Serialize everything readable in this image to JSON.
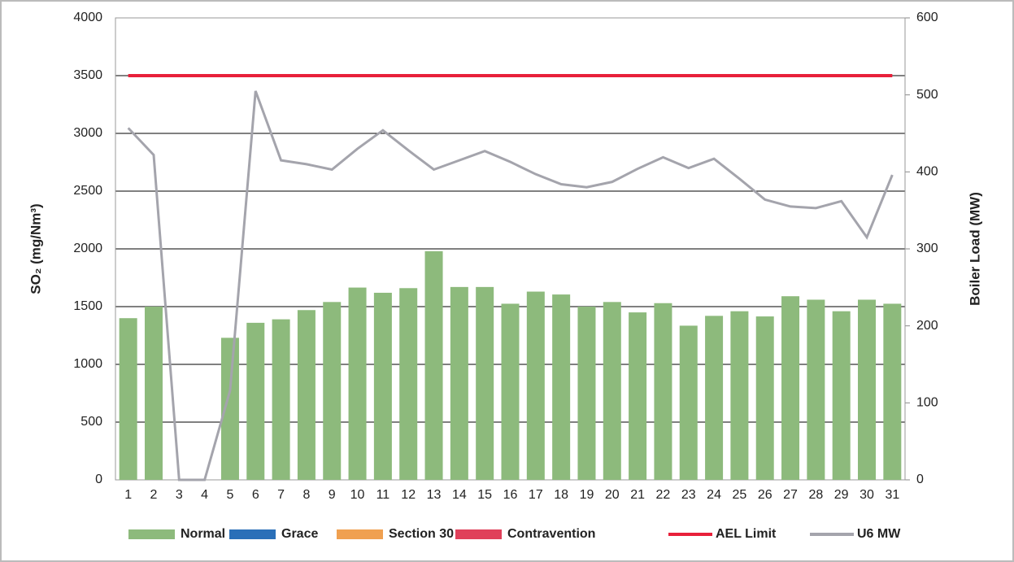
{
  "chart_data": {
    "type": "bar",
    "ylabel": "SO₂ (mg/Nm³)",
    "y2label": "Boiler Load (MW)",
    "categories": [
      "1",
      "2",
      "3",
      "4",
      "5",
      "6",
      "7",
      "8",
      "9",
      "10",
      "11",
      "12",
      "13",
      "14",
      "15",
      "16",
      "17",
      "18",
      "19",
      "20",
      "21",
      "22",
      "23",
      "24",
      "25",
      "26",
      "27",
      "28",
      "29",
      "30",
      "31"
    ],
    "ylim": [
      0,
      4000
    ],
    "yticks": [
      0,
      500,
      1000,
      1500,
      2000,
      2500,
      3000,
      3500,
      4000
    ],
    "y2lim": [
      0,
      600
    ],
    "y2ticks": [
      0,
      100,
      200,
      300,
      400,
      500,
      600
    ],
    "grid": true,
    "series": [
      {
        "name": "Normal",
        "color": "#8dba7c",
        "kind": "bar",
        "values": [
          1400,
          1500,
          0,
          0,
          1230,
          1360,
          1390,
          1470,
          1540,
          1665,
          1620,
          1660,
          1980,
          1670,
          1670,
          1525,
          1630,
          1605,
          1500,
          1540,
          1450,
          1530,
          1335,
          1420,
          1460,
          1415,
          1590,
          1560,
          1460,
          1560,
          1525
        ]
      },
      {
        "name": "Grace",
        "color": "#2a6fb8",
        "kind": "bar",
        "values": [
          0,
          0,
          0,
          0,
          0,
          0,
          0,
          0,
          0,
          0,
          0,
          0,
          0,
          0,
          0,
          0,
          0,
          0,
          0,
          0,
          0,
          0,
          0,
          0,
          0,
          0,
          0,
          0,
          0,
          0,
          0
        ]
      },
      {
        "name": "Section 30",
        "color": "#f0a050",
        "kind": "bar",
        "values": [
          0,
          0,
          0,
          0,
          0,
          0,
          0,
          0,
          0,
          0,
          0,
          0,
          0,
          0,
          0,
          0,
          0,
          0,
          0,
          0,
          0,
          0,
          0,
          0,
          0,
          0,
          0,
          0,
          0,
          0,
          0
        ]
      },
      {
        "name": "Contravention",
        "color": "#e0405a",
        "kind": "bar",
        "values": [
          0,
          0,
          0,
          0,
          0,
          0,
          0,
          0,
          0,
          0,
          0,
          0,
          0,
          0,
          0,
          0,
          0,
          0,
          0,
          0,
          0,
          0,
          0,
          0,
          0,
          0,
          0,
          0,
          0,
          0,
          0
        ]
      },
      {
        "name": "AEL Limit",
        "color": "#e8203a",
        "kind": "line",
        "values": [
          3500,
          3500,
          3500,
          3500,
          3500,
          3500,
          3500,
          3500,
          3500,
          3500,
          3500,
          3500,
          3500,
          3500,
          3500,
          3500,
          3500,
          3500,
          3500,
          3500,
          3500,
          3500,
          3500,
          3500,
          3500,
          3500,
          3500,
          3500,
          3500,
          3500,
          3500
        ]
      },
      {
        "name": "U6 MW",
        "color": "#a4a4ac",
        "kind": "line",
        "axis": "y2",
        "values": [
          457,
          422,
          0,
          0,
          116,
          505,
          415,
          410,
          403,
          430,
          454,
          428,
          403,
          415,
          427,
          413,
          397,
          384,
          380,
          387,
          404,
          419,
          405,
          417,
          391,
          364,
          355,
          353,
          362,
          315,
          396
        ]
      }
    ]
  }
}
